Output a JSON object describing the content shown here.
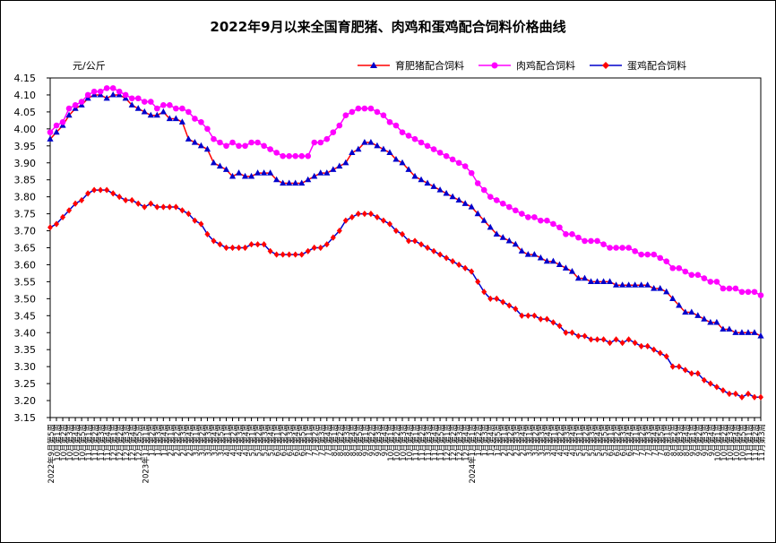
{
  "chart_data": {
    "type": "line",
    "title": "2022年9月以来全国育肥猪、肉鸡和蛋鸡配合饲料价格曲线",
    "ylabel": "元/公斤",
    "xlabel": "",
    "ylim": [
      3.15,
      4.15
    ],
    "yticks": [
      3.15,
      3.2,
      3.25,
      3.3,
      3.35,
      3.4,
      3.45,
      3.5,
      3.55,
      3.6,
      3.65,
      3.7,
      3.75,
      3.8,
      3.85,
      3.9,
      3.95,
      4.0,
      4.05,
      4.1,
      4.15
    ],
    "grid": false,
    "legend_position": "top-right",
    "x": [
      "2022年9月第5周",
      "10月第1周",
      "10月第2周",
      "10月第3周",
      "10月第4周",
      "10月第5周",
      "11月第1周",
      "11月第2周",
      "11月第3周",
      "11月第4周",
      "12月第1周",
      "12月第2周",
      "12月第3周",
      "12月第4周",
      "12月第5周",
      "2023年1月第1周",
      "1月第2周",
      "1月第3周",
      "1月第4周",
      "2月第1周",
      "2月第2周",
      "2月第3周",
      "2月第4周",
      "3月第1周",
      "3月第2周",
      "3月第3周",
      "3月第4周",
      "3月第5周",
      "4月第1周",
      "4月第2周",
      "4月第3周",
      "4月第4周",
      "5月第1周",
      "5月第2周",
      "5月第3周",
      "5月第4周",
      "6月第1周",
      "6月第2周",
      "6月第3周",
      "6月第4周",
      "6月第5周",
      "7月第1周",
      "7月第2周",
      "7月第3周",
      "7月第4周",
      "8月第1周",
      "8月第2周",
      "8月第3周",
      "8月第4周",
      "8月第5周",
      "9月第1周",
      "9月第2周",
      "9月第3周",
      "9月第4周",
      "10月第1周",
      "10月第2周",
      "10月第3周",
      "10月第4周",
      "11月第1周",
      "11月第2周",
      "11月第3周",
      "11月第4周",
      "11月第5周",
      "12月第1周",
      "12月第2周",
      "12月第3周",
      "12月第4周",
      "2024年1月第1周",
      "1月第2周",
      "1月第3周",
      "1月第4周",
      "1月第5周",
      "2月第1周",
      "2月第2周",
      "2月第3周",
      "2月第4周",
      "3月第1周",
      "3月第2周",
      "3月第3周",
      "3月第4周",
      "4月第1周",
      "4月第2周",
      "4月第3周",
      "4月第4周",
      "5月第1周",
      "5月第2周",
      "5月第3周",
      "5月第4周",
      "5月第5周",
      "6月第1周",
      "6月第2周",
      "6月第3周",
      "6月第4周",
      "7月第1周",
      "7月第2周",
      "7月第3周",
      "7月第4周",
      "7月第5周",
      "8月第1周",
      "8月第2周",
      "8月第3周",
      "8月第4周",
      "9月第1周",
      "9月第2周",
      "9月第3周",
      "9月第4周",
      "10月第1周",
      "10月第2周",
      "10月第3周",
      "10月第4周",
      "10月第5周",
      "11月第1周",
      "11月第2周",
      "11月第3周"
    ],
    "x_tick_labels": [
      "2022年9月第5周",
      "10月第1周",
      "10月第2周",
      "10月第3周",
      "10月第4周",
      "10月第5周",
      "11月第1周",
      "11月第2周",
      "11月第3周",
      "11月第4周",
      "12月第1周",
      "12月第2周",
      "12月第3周",
      "12月第4周",
      "12月第5周",
      "2023年1月第1周",
      "1月第2周",
      "1月第3周",
      "1月第4周",
      "2月第1周",
      "2月第2周",
      "2月第3周",
      "2月第4周",
      "3月第1周",
      "3月第2周",
      "3月第3周",
      "3月第4周",
      "3月第5周",
      "4月第1周",
      "4月第2周",
      "4月第3周",
      "4月第4周",
      "5月第1周",
      "5月第2周",
      "5月第3周",
      "5月第4周",
      "6月第1周",
      "6月第2周",
      "6月第3周",
      "6月第4周",
      "6月第5周",
      "7月第1周",
      "7月第2周",
      "7月第3周",
      "7月第4周",
      "8月第1周",
      "8月第2周",
      "8月第3周",
      "8月第4周",
      "8月第5周",
      "9月第1周",
      "9月第2周",
      "9月第3周",
      "9月第4周",
      "10月第1周",
      "10月第2周",
      "10月第3周",
      "10月第4周",
      "11月第1周",
      "11月第2周",
      "11月第3周",
      "11月第4周",
      "11月第5周",
      "12月第1周",
      "12月第2周",
      "12月第3周",
      "12月第4周",
      "2024年1月第1周",
      "1月第2周",
      "1月第3周",
      "1月第4周",
      "1月第5周",
      "2月第1周",
      "2月第2周",
      "2月第3周",
      "2月第4周",
      "3月第1周",
      "3月第2周",
      "3月第3周",
      "3月第4周",
      "4月第1周",
      "4月第2周",
      "4月第3周",
      "4月第4周",
      "5月第1周",
      "5月第2周",
      "5月第3周",
      "5月第4周",
      "5月第5周",
      "6月第1周",
      "6月第2周",
      "6月第3周",
      "6月第4周",
      "7月第1周",
      "7月第2周",
      "7月第3周",
      "7月第4周",
      "7月第5周",
      "8月第1周",
      "8月第2周",
      "8月第3周",
      "8月第4周",
      "9月第1周",
      "9月第2周",
      "9月第3周",
      "9月第4周",
      "10月第1周",
      "10月第2周",
      "10月第3周",
      "10月第4周",
      "10月第5周",
      "11月第1周",
      "11月第2周",
      "11月第3周"
    ],
    "series": [
      {
        "name": "育肥猪配合饲料",
        "color": "#0000cc",
        "marker": "triangle",
        "values": [
          3.97,
          3.99,
          4.01,
          4.04,
          4.06,
          4.07,
          4.09,
          4.1,
          4.1,
          4.09,
          4.1,
          4.1,
          4.09,
          4.07,
          4.06,
          4.05,
          4.04,
          4.04,
          4.05,
          4.03,
          4.03,
          4.02,
          3.97,
          3.96,
          3.95,
          3.94,
          3.9,
          3.89,
          3.88,
          3.86,
          3.87,
          3.86,
          3.86,
          3.87,
          3.87,
          3.87,
          3.85,
          3.84,
          3.84,
          3.84,
          3.84,
          3.85,
          3.86,
          3.87,
          3.87,
          3.88,
          3.89,
          3.9,
          3.93,
          3.94,
          3.96,
          3.96,
          3.95,
          3.94,
          3.93,
          3.91,
          3.9,
          3.88,
          3.86,
          3.85,
          3.84,
          3.83,
          3.82,
          3.81,
          3.8,
          3.79,
          3.78,
          3.77,
          3.75,
          3.73,
          3.71,
          3.69,
          3.68,
          3.67,
          3.66,
          3.64,
          3.63,
          3.63,
          3.62,
          3.61,
          3.61,
          3.6,
          3.59,
          3.58,
          3.56,
          3.56,
          3.55,
          3.55,
          3.55,
          3.55,
          3.54,
          3.54,
          3.54,
          3.54,
          3.54,
          3.54,
          3.53,
          3.53,
          3.52,
          3.5,
          3.48,
          3.46,
          3.46,
          3.45,
          3.44,
          3.43,
          3.43,
          3.41,
          3.41,
          3.4,
          3.4,
          3.4,
          3.4,
          3.39
        ]
      },
      {
        "name": "肉鸡配合饲料",
        "color": "#ff00ff",
        "marker": "circle",
        "values": [
          3.99,
          4.01,
          4.02,
          4.06,
          4.07,
          4.08,
          4.1,
          4.11,
          4.11,
          4.12,
          4.12,
          4.11,
          4.1,
          4.09,
          4.09,
          4.08,
          4.08,
          4.06,
          4.07,
          4.07,
          4.06,
          4.06,
          4.05,
          4.03,
          4.02,
          4.0,
          3.97,
          3.96,
          3.95,
          3.96,
          3.95,
          3.95,
          3.96,
          3.96,
          3.95,
          3.94,
          3.93,
          3.92,
          3.92,
          3.92,
          3.92,
          3.92,
          3.96,
          3.96,
          3.97,
          3.99,
          4.01,
          4.04,
          4.05,
          4.06,
          4.06,
          4.06,
          4.05,
          4.04,
          4.02,
          4.01,
          3.99,
          3.98,
          3.97,
          3.96,
          3.95,
          3.94,
          3.93,
          3.92,
          3.91,
          3.9,
          3.89,
          3.87,
          3.84,
          3.82,
          3.8,
          3.79,
          3.78,
          3.77,
          3.76,
          3.75,
          3.74,
          3.74,
          3.73,
          3.73,
          3.72,
          3.71,
          3.69,
          3.69,
          3.68,
          3.67,
          3.67,
          3.67,
          3.66,
          3.65,
          3.65,
          3.65,
          3.65,
          3.64,
          3.63,
          3.63,
          3.63,
          3.62,
          3.61,
          3.59,
          3.59,
          3.58,
          3.57,
          3.57,
          3.56,
          3.55,
          3.55,
          3.53,
          3.53,
          3.53,
          3.52,
          3.52,
          3.52,
          3.51
        ]
      },
      {
        "name": "蛋鸡配合饲料",
        "color": "#ff0000",
        "marker": "diamond",
        "values": [
          3.71,
          3.72,
          3.74,
          3.76,
          3.78,
          3.79,
          3.81,
          3.82,
          3.82,
          3.82,
          3.81,
          3.8,
          3.79,
          3.79,
          3.78,
          3.77,
          3.78,
          3.77,
          3.77,
          3.77,
          3.77,
          3.76,
          3.75,
          3.73,
          3.72,
          3.69,
          3.67,
          3.66,
          3.65,
          3.65,
          3.65,
          3.65,
          3.66,
          3.66,
          3.66,
          3.64,
          3.63,
          3.63,
          3.63,
          3.63,
          3.63,
          3.64,
          3.65,
          3.65,
          3.66,
          3.68,
          3.7,
          3.73,
          3.74,
          3.75,
          3.75,
          3.75,
          3.74,
          3.73,
          3.72,
          3.7,
          3.69,
          3.67,
          3.67,
          3.66,
          3.65,
          3.64,
          3.63,
          3.62,
          3.61,
          3.6,
          3.59,
          3.58,
          3.55,
          3.52,
          3.5,
          3.5,
          3.49,
          3.48,
          3.47,
          3.45,
          3.45,
          3.45,
          3.44,
          3.44,
          3.43,
          3.42,
          3.4,
          3.4,
          3.39,
          3.39,
          3.38,
          3.38,
          3.38,
          3.37,
          3.38,
          3.37,
          3.38,
          3.37,
          3.36,
          3.36,
          3.35,
          3.34,
          3.33,
          3.3,
          3.3,
          3.29,
          3.28,
          3.28,
          3.26,
          3.25,
          3.24,
          3.23,
          3.22,
          3.22,
          3.21,
          3.22,
          3.21,
          3.21
        ]
      }
    ]
  }
}
